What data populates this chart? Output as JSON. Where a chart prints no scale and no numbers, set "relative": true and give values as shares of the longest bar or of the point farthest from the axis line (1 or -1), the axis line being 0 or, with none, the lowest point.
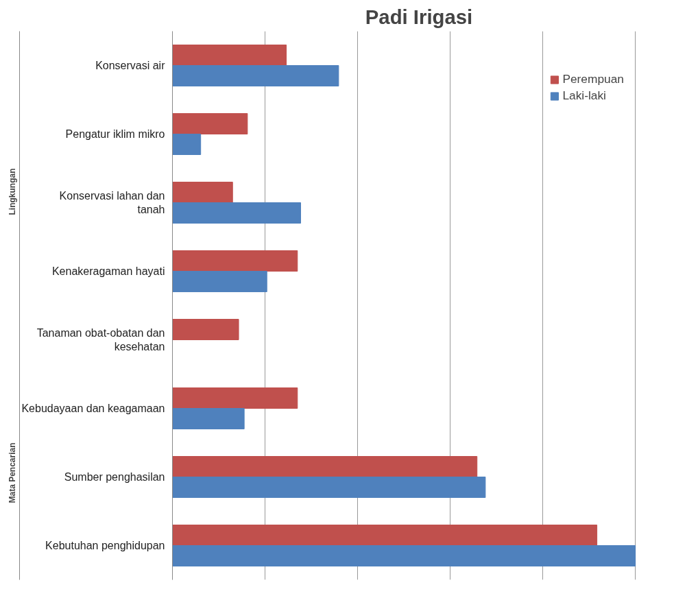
{
  "chart_data": {
    "type": "bar",
    "orientation": "horizontal",
    "relative": true,
    "title": "Padi Irigasi",
    "categories": [
      "Konservasi air",
      "Pengatur iklim mikro",
      "Konservasi lahan dan tanah",
      "Kenakeragaman hayati",
      "Tanaman obat-obatan dan kesehatan",
      "Kebudayaan dan keagamaan",
      "Sumber penghasilan",
      "Kebutuhan penghidupan"
    ],
    "series": [
      {
        "name": "Perempuan",
        "color": "#c0504d",
        "values": [
          0.246,
          0.162,
          0.13,
          0.27,
          0.143,
          0.27,
          0.658,
          0.917
        ]
      },
      {
        "name": "Laki-laki",
        "color": "#4f81bd",
        "values": [
          0.359,
          0.061,
          0.277,
          0.204,
          null,
          0.155,
          0.676,
          1.0
        ]
      }
    ],
    "annotations": [
      "Lingkungan",
      "Mata Pencarian"
    ],
    "grid": "x",
    "legend": "top right"
  }
}
